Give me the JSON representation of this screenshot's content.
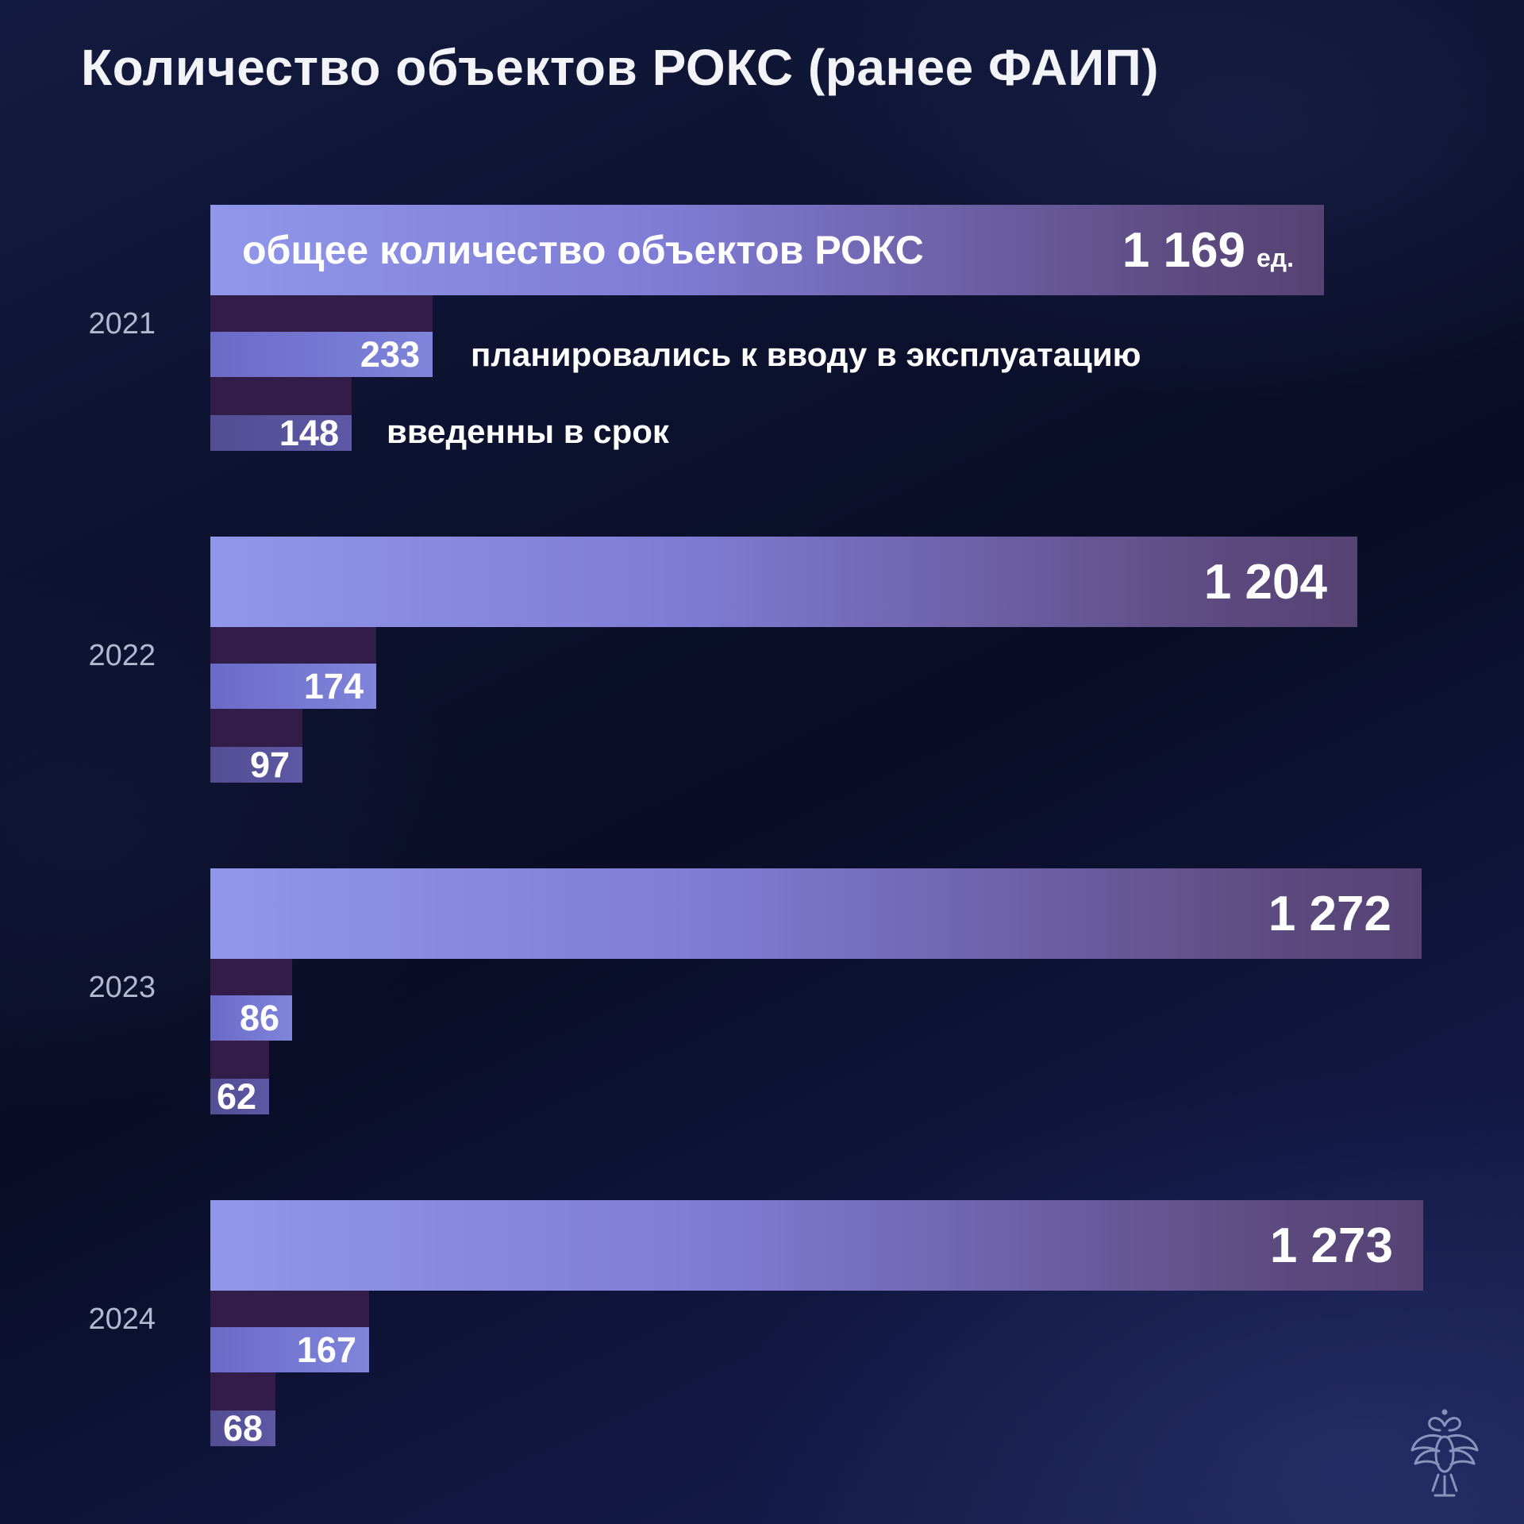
{
  "title": "Количество объектов РОКС (ранее ФАИП)",
  "chart_data": {
    "type": "bar",
    "orientation": "horizontal",
    "title": "Количество объектов РОКС (ранее ФАИП)",
    "categories": [
      "2021",
      "2022",
      "2023",
      "2024"
    ],
    "series": [
      {
        "name": "общее количество объектов РОКС",
        "role": "total",
        "values": [
          1169,
          1204,
          1272,
          1273
        ],
        "display": [
          "1 169",
          "1 204",
          "1 272",
          "1 273"
        ]
      },
      {
        "name": "планировались к вводу в эксплуатацию",
        "role": "planned",
        "values": [
          233,
          174,
          86,
          167
        ],
        "display": [
          "233",
          "174",
          "86",
          "167"
        ]
      },
      {
        "name": "введенны в срок",
        "role": "on_time",
        "values": [
          148,
          97,
          62,
          68
        ],
        "display": [
          "148",
          "97",
          "62",
          "68"
        ]
      }
    ],
    "unit_label": "ед.",
    "axis": {
      "x_min": 0,
      "x_max": 1273,
      "gridlines": false,
      "value_labels": "inside-bar",
      "legend_position": "inline-first-group"
    }
  },
  "colors": {
    "background_top": "#141b40",
    "background_mid": "#090d26",
    "background_bottom": "#1b2252",
    "total_bar_start": "#9097ea",
    "total_bar_end": "#564373",
    "planned_bar": "#6a6bc8",
    "on_time_bar": "#534d93",
    "shadow_band": "#321c48",
    "year_label": "#b3b9d1",
    "text": "#ffffff"
  },
  "logo": {
    "name": "double-headed-eagle-emblem",
    "color": "#9aa7cc"
  }
}
